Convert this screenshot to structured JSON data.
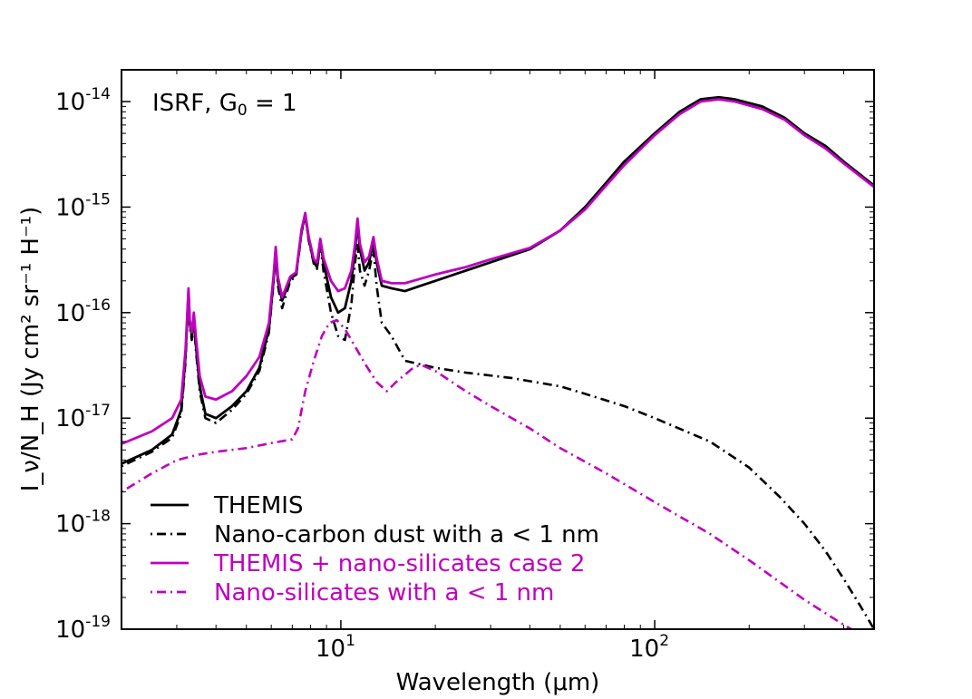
{
  "chart_data": {
    "type": "line",
    "xscale": "log",
    "yscale": "log",
    "xlim": [
      2,
      500
    ],
    "ylim": [
      1e-19,
      2e-14
    ],
    "xlabel": "Wavelength (μm)",
    "ylabel": "I_ν/N_H (Jy cm² sr⁻¹ H⁻¹)",
    "xticks": [
      {
        "value": 10,
        "base": "10",
        "exp": "1"
      },
      {
        "value": 100,
        "base": "10",
        "exp": "2"
      }
    ],
    "yticks": [
      {
        "value": 1e-19,
        "base": "10",
        "exp": "-19"
      },
      {
        "value": 1e-18,
        "base": "10",
        "exp": "-18"
      },
      {
        "value": 1e-17,
        "base": "10",
        "exp": "-17"
      },
      {
        "value": 1e-16,
        "base": "10",
        "exp": "-16"
      },
      {
        "value": 1e-15,
        "base": "10",
        "exp": "-15"
      },
      {
        "value": 1e-14,
        "base": "10",
        "exp": "-14"
      }
    ],
    "annotation": {
      "prefix": "ISRF, G",
      "sub": "0",
      "suffix": " = 1"
    },
    "legend_position": "bottom-left",
    "series": [
      {
        "name": "THEMIS",
        "color": "#000000",
        "style": "solid",
        "points": [
          [
            2,
            3.7e-18
          ],
          [
            2.5,
            5e-18
          ],
          [
            2.9,
            7e-18
          ],
          [
            3.1,
            1.2e-17
          ],
          [
            3.2,
            4e-17
          ],
          [
            3.27,
            1.6e-16
          ],
          [
            3.3,
            8e-17
          ],
          [
            3.35,
            6e-17
          ],
          [
            3.4,
            9e-17
          ],
          [
            3.45,
            5e-17
          ],
          [
            3.55,
            2e-17
          ],
          [
            3.7,
            1.1e-17
          ],
          [
            4,
            1e-17
          ],
          [
            4.5,
            1.3e-17
          ],
          [
            5,
            1.8e-17
          ],
          [
            5.5,
            3e-17
          ],
          [
            5.9,
            7e-17
          ],
          [
            6.1,
            2e-16
          ],
          [
            6.2,
            4e-16
          ],
          [
            6.3,
            2e-16
          ],
          [
            6.5,
            1.3e-16
          ],
          [
            6.9,
            2.1e-16
          ],
          [
            7.2,
            2.3e-16
          ],
          [
            7.5,
            6e-16
          ],
          [
            7.7,
            8.5e-16
          ],
          [
            7.9,
            5e-16
          ],
          [
            8.2,
            3e-16
          ],
          [
            8.4,
            2.7e-16
          ],
          [
            8.6,
            4.8e-16
          ],
          [
            8.8,
            3e-16
          ],
          [
            9.3,
            1.4e-16
          ],
          [
            9.8,
            1e-16
          ],
          [
            10.3,
            1.1e-16
          ],
          [
            10.8,
            2e-16
          ],
          [
            11.1,
            4e-16
          ],
          [
            11.3,
            7e-16
          ],
          [
            11.5,
            4e-16
          ],
          [
            11.9,
            2.5e-16
          ],
          [
            12.3,
            3e-16
          ],
          [
            12.7,
            4.8e-16
          ],
          [
            13.0,
            3e-16
          ],
          [
            13.5,
            1.8e-16
          ],
          [
            14.5,
            1.7e-16
          ],
          [
            16,
            1.6e-16
          ],
          [
            18,
            1.8e-16
          ],
          [
            20,
            2e-16
          ],
          [
            25,
            2.5e-16
          ],
          [
            30,
            3e-16
          ],
          [
            40,
            4e-16
          ],
          [
            50,
            6e-16
          ],
          [
            60,
            1e-15
          ],
          [
            70,
            1.7e-15
          ],
          [
            80,
            2.7e-15
          ],
          [
            100,
            5e-15
          ],
          [
            120,
            8e-15
          ],
          [
            140,
            1.05e-14
          ],
          [
            160,
            1.1e-14
          ],
          [
            180,
            1.05e-14
          ],
          [
            220,
            9e-15
          ],
          [
            260,
            7e-15
          ],
          [
            300,
            5e-15
          ],
          [
            350,
            3.8e-15
          ],
          [
            400,
            2.7e-15
          ],
          [
            500,
            1.6e-15
          ]
        ]
      },
      {
        "name": "Nano-carbon dust with a < 1 nm",
        "color": "#000000",
        "style": "dashdot",
        "points": [
          [
            2,
            3.5e-18
          ],
          [
            2.5,
            4.8e-18
          ],
          [
            2.9,
            6.5e-18
          ],
          [
            3.1,
            1.1e-17
          ],
          [
            3.2,
            3.5e-17
          ],
          [
            3.27,
            1.5e-16
          ],
          [
            3.3,
            7.5e-17
          ],
          [
            3.35,
            5.5e-17
          ],
          [
            3.4,
            8.5e-17
          ],
          [
            3.45,
            4.5e-17
          ],
          [
            3.55,
            1.8e-17
          ],
          [
            3.7,
            1e-17
          ],
          [
            4,
            9e-18
          ],
          [
            4.5,
            1.2e-17
          ],
          [
            5,
            1.7e-17
          ],
          [
            5.5,
            2.8e-17
          ],
          [
            5.9,
            6.5e-17
          ],
          [
            6.1,
            1.9e-16
          ],
          [
            6.2,
            3.8e-16
          ],
          [
            6.3,
            1.8e-16
          ],
          [
            6.5,
            1.1e-16
          ],
          [
            6.9,
            2e-16
          ],
          [
            7.2,
            2.2e-16
          ],
          [
            7.5,
            5.8e-16
          ],
          [
            7.7,
            8.2e-16
          ],
          [
            7.9,
            4.8e-16
          ],
          [
            8.2,
            2.9e-16
          ],
          [
            8.4,
            2.6e-16
          ],
          [
            8.6,
            4.5e-16
          ],
          [
            8.8,
            2.5e-16
          ],
          [
            9.3,
            1e-16
          ],
          [
            9.8,
            6e-17
          ],
          [
            10.3,
            5.5e-17
          ],
          [
            10.8,
            1.2e-16
          ],
          [
            11.1,
            3e-16
          ],
          [
            11.3,
            4.5e-16
          ],
          [
            11.5,
            2.5e-16
          ],
          [
            11.9,
            1.8e-16
          ],
          [
            12.3,
            2.5e-16
          ],
          [
            12.7,
            4e-16
          ],
          [
            13.0,
            1.8e-16
          ],
          [
            13.5,
            8e-17
          ],
          [
            14.5,
            6e-17
          ],
          [
            16,
            3.5e-17
          ],
          [
            20,
            3e-17
          ],
          [
            25,
            2.7e-17
          ],
          [
            35,
            2.4e-17
          ],
          [
            50,
            2e-17
          ],
          [
            60,
            1.7e-17
          ],
          [
            80,
            1.3e-17
          ],
          [
            100,
            1e-17
          ],
          [
            150,
            6e-18
          ],
          [
            200,
            3.4e-18
          ],
          [
            250,
            1.8e-18
          ],
          [
            300,
            1e-18
          ],
          [
            350,
            5.5e-19
          ],
          [
            400,
            3e-19
          ],
          [
            450,
            1.7e-19
          ],
          [
            500,
            1e-19
          ]
        ]
      },
      {
        "name": "THEMIS + nano-silicates case 2",
        "color": "#bf00bf",
        "style": "solid",
        "points": [
          [
            2,
            5.7e-18
          ],
          [
            2.5,
            7.5e-18
          ],
          [
            2.9,
            1e-17
          ],
          [
            3.1,
            1.5e-17
          ],
          [
            3.2,
            4.5e-17
          ],
          [
            3.27,
            1.7e-16
          ],
          [
            3.3,
            8.5e-17
          ],
          [
            3.35,
            6.5e-17
          ],
          [
            3.4,
            1e-16
          ],
          [
            3.45,
            6e-17
          ],
          [
            3.55,
            2.5e-17
          ],
          [
            3.7,
            1.6e-17
          ],
          [
            4,
            1.5e-17
          ],
          [
            4.5,
            1.8e-17
          ],
          [
            5,
            2.5e-17
          ],
          [
            5.5,
            3.8e-17
          ],
          [
            5.9,
            8e-17
          ],
          [
            6.1,
            2.2e-16
          ],
          [
            6.2,
            4.2e-16
          ],
          [
            6.3,
            2.2e-16
          ],
          [
            6.5,
            1.4e-16
          ],
          [
            6.9,
            2.2e-16
          ],
          [
            7.2,
            2.4e-16
          ],
          [
            7.5,
            6.2e-16
          ],
          [
            7.7,
            8.8e-16
          ],
          [
            7.9,
            5.2e-16
          ],
          [
            8.2,
            3.2e-16
          ],
          [
            8.4,
            3e-16
          ],
          [
            8.6,
            5e-16
          ],
          [
            8.8,
            3.3e-16
          ],
          [
            9.3,
            2e-16
          ],
          [
            9.8,
            1.6e-16
          ],
          [
            10.3,
            1.7e-16
          ],
          [
            10.8,
            2.5e-16
          ],
          [
            11.1,
            4.5e-16
          ],
          [
            11.3,
            7.8e-16
          ],
          [
            11.5,
            4.5e-16
          ],
          [
            11.9,
            3e-16
          ],
          [
            12.3,
            3.4e-16
          ],
          [
            12.7,
            5.2e-16
          ],
          [
            13.0,
            3.3e-16
          ],
          [
            13.5,
            2e-16
          ],
          [
            14.5,
            1.9e-16
          ],
          [
            16,
            1.9e-16
          ],
          [
            18,
            2.1e-16
          ],
          [
            20,
            2.3e-16
          ],
          [
            25,
            2.7e-16
          ],
          [
            30,
            3.2e-16
          ],
          [
            40,
            4.1e-16
          ],
          [
            50,
            6e-16
          ],
          [
            60,
            9.5e-16
          ],
          [
            70,
            1.6e-15
          ],
          [
            80,
            2.5e-15
          ],
          [
            100,
            4.8e-15
          ],
          [
            120,
            7.6e-15
          ],
          [
            140,
            1e-14
          ],
          [
            160,
            1.05e-14
          ],
          [
            180,
            1e-14
          ],
          [
            220,
            8.5e-15
          ],
          [
            260,
            6.7e-15
          ],
          [
            300,
            4.8e-15
          ],
          [
            350,
            3.6e-15
          ],
          [
            400,
            2.6e-15
          ],
          [
            500,
            1.55e-15
          ]
        ]
      },
      {
        "name": "Nano-silicates with a < 1 nm",
        "color": "#bf00bf",
        "style": "dashdot",
        "points": [
          [
            2,
            2e-18
          ],
          [
            2.5,
            3e-18
          ],
          [
            3,
            4e-18
          ],
          [
            3.5,
            4.5e-18
          ],
          [
            4,
            4.8e-18
          ],
          [
            5,
            5.2e-18
          ],
          [
            6,
            5.8e-18
          ],
          [
            7,
            6.3e-18
          ],
          [
            7.3,
            8e-18
          ],
          [
            7.7,
            1.8e-17
          ],
          [
            8.2,
            3.5e-17
          ],
          [
            8.7,
            6e-17
          ],
          [
            9.2,
            8e-17
          ],
          [
            9.7,
            8.5e-17
          ],
          [
            10.3,
            7e-17
          ],
          [
            11,
            5e-17
          ],
          [
            12,
            3.2e-17
          ],
          [
            13,
            2.2e-17
          ],
          [
            14,
            1.8e-17
          ],
          [
            15,
            2.2e-17
          ],
          [
            17,
            3e-17
          ],
          [
            18,
            3.2e-17
          ],
          [
            20,
            2.8e-17
          ],
          [
            25,
            1.8e-17
          ],
          [
            30,
            1.3e-17
          ],
          [
            40,
            8e-18
          ],
          [
            50,
            5.2e-18
          ],
          [
            70,
            3e-18
          ],
          [
            100,
            1.6e-18
          ],
          [
            150,
            8e-19
          ],
          [
            200,
            4.5e-19
          ],
          [
            250,
            2.8e-19
          ],
          [
            300,
            1.9e-19
          ],
          [
            400,
            1.1e-19
          ],
          [
            450,
            9e-20
          ]
        ]
      }
    ]
  }
}
